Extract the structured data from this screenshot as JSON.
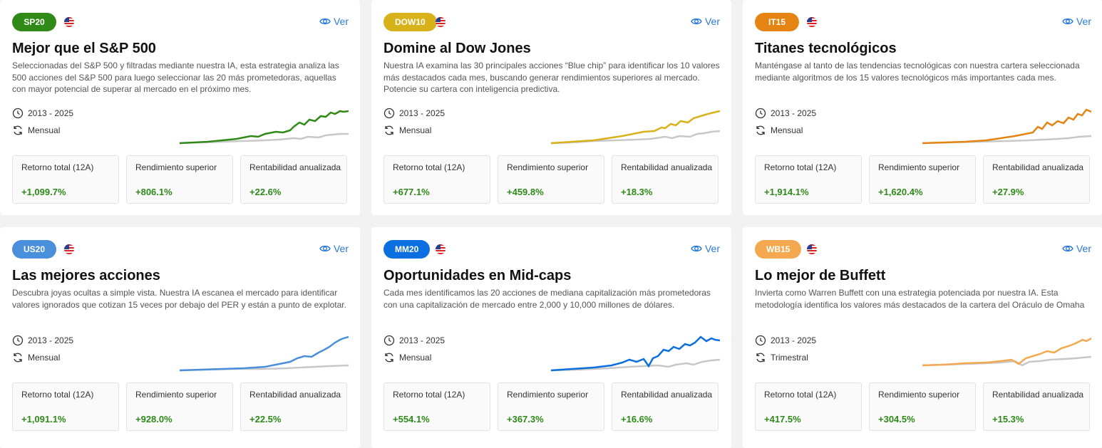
{
  "cards": [
    {
      "code": "SP20",
      "color": "#2f8a17",
      "title": "Mejor que el S&P 500",
      "description": "Seleccionadas del S&P 500 y filtradas mediante nuestra IA, esta estrategia analiza las 500 acciones del S&P 500 para luego seleccionar las 20 más prometedoras, aquellas con mayor potencial de superar al mercado en el próximo mes.",
      "period": "2013 - 2025",
      "frequency": "Mensual",
      "view_label": "Ver",
      "stats": [
        {
          "label": "Retorno total (12A)",
          "value": "+1,099.7%"
        },
        {
          "label": "Rendimiento superior",
          "value": "+806.1%"
        },
        {
          "label": "Rentabilidad anualizada",
          "value": "+22.6%"
        }
      ]
    },
    {
      "code": "DOW10",
      "color": "#d8b21b",
      "title": "Domine al Dow Jones",
      "description": "Nuestra IA examina las 30 principales acciones “Blue chip” para identificar los 10 valores más destacados cada mes, buscando generar rendimientos superiores al mercado. Potencie su cartera con inteligencia predictiva.",
      "period": "2013 - 2025",
      "frequency": "Mensual",
      "view_label": "Ver",
      "stats": [
        {
          "label": "Retorno total (12A)",
          "value": "+677.1%"
        },
        {
          "label": "Rendimiento superior",
          "value": "+459.8%"
        },
        {
          "label": "Rentabilidad anualizada",
          "value": "+18.3%"
        }
      ]
    },
    {
      "code": "IT15",
      "color": "#e58412",
      "title": "Titanes tecnológicos",
      "description": "Manténgase al tanto de las tendencias tecnológicas con nuestra cartera seleccionada mediante algoritmos de los 15 valores tecnológicos más importantes cada mes.",
      "period": "2013 - 2025",
      "frequency": "Mensual",
      "view_label": "Ver",
      "stats": [
        {
          "label": "Retorno total (12A)",
          "value": "+1,914.1%"
        },
        {
          "label": "Rendimiento superior",
          "value": "+1,620.4%"
        },
        {
          "label": "Rentabilidad anualizada",
          "value": "+27.9%"
        }
      ]
    },
    {
      "code": "US20",
      "color": "#4a8fdc",
      "title": "Las mejores acciones",
      "description": "Descubra joyas ocultas a simple vista. Nuestra IA escanea el mercado para identificar valores ignorados que cotizan 15 veces por debajo del PER y están a punto de explotar.",
      "period": "2013 - 2025",
      "frequency": "Mensual",
      "view_label": "Ver",
      "stats": [
        {
          "label": "Retorno total (12A)",
          "value": "+1,091.1%"
        },
        {
          "label": "Rendimiento superior",
          "value": "+928.0%"
        },
        {
          "label": "Rentabilidad anualizada",
          "value": "+22.5%"
        }
      ]
    },
    {
      "code": "MM20",
      "color": "#0b6fdf",
      "title": "Oportunidades en Mid-caps",
      "description": "Cada mes identificamos las 20 acciones de mediana capitalización más prometedoras con una capitalización de mercado entre 2,000 y 10,000 millones de dólares.",
      "period": "2013 - 2025",
      "frequency": "Mensual",
      "view_label": "Ver",
      "stats": [
        {
          "label": "Retorno total (12A)",
          "value": "+554.1%"
        },
        {
          "label": "Rendimiento superior",
          "value": "+367.3%"
        },
        {
          "label": "Rentabilidad anualizada",
          "value": "+16.6%"
        }
      ]
    },
    {
      "code": "WB15",
      "color": "#f4a850",
      "title": "Lo mejor de Buffett",
      "description": "Invierta como Warren Buffett con una estrategia potenciada por nuestra IA. Esta metodología identifica los valores más destacados de la cartera del Oráculo de Omaha",
      "period": "2013 - 2025",
      "frequency": "Trimestral",
      "view_label": "Ver",
      "stats": [
        {
          "label": "Retorno total (12A)",
          "value": "+417.5%"
        },
        {
          "label": "Rendimiento superior",
          "value": "+304.5%"
        },
        {
          "label": "Rentabilidad anualizada",
          "value": "+15.3%"
        }
      ]
    }
  ],
  "colors": {
    "benchmark_line": "#c8c8c8",
    "positive": "#2d8a18",
    "link": "#2a7ad6"
  }
}
